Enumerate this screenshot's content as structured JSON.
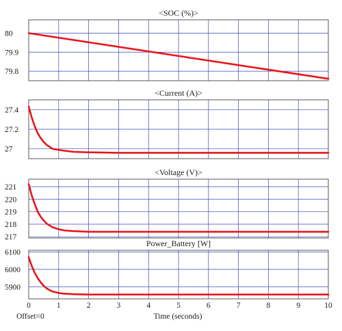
{
  "footer": {
    "offset_label": "Offset=0"
  },
  "colors": {
    "series": "#e8151b",
    "grid": "#3c46b4",
    "frame": "#555555"
  },
  "chart_data": [
    {
      "type": "line",
      "title": "<SOC (%)>",
      "xlabel": "",
      "ylabel": "",
      "xlim": [
        0,
        10
      ],
      "ylim": [
        79.75,
        80.07
      ],
      "yticks": [
        79.8,
        79.9,
        80
      ],
      "ytick_labels": [
        "79.8",
        "79.9",
        "80"
      ],
      "grid": true,
      "series": [
        {
          "x": [
            0,
            10
          ],
          "values": [
            80.0,
            79.76
          ]
        }
      ]
    },
    {
      "type": "line",
      "title": "<Current (A)>",
      "xlabel": "",
      "ylabel": "",
      "xlim": [
        0,
        10
      ],
      "ylim": [
        26.9,
        27.5
      ],
      "yticks": [
        27,
        27.2,
        27.4
      ],
      "ytick_labels": [
        "27",
        "27.2",
        "27.4"
      ],
      "grid": true,
      "series": [
        {
          "x": [
            0,
            0.1,
            0.2,
            0.3,
            0.4,
            0.5,
            0.6,
            0.7,
            0.8,
            1.0,
            1.2,
            1.5,
            2.0,
            3.0,
            10.0
          ],
          "values": [
            27.43,
            27.32,
            27.23,
            27.16,
            27.11,
            27.07,
            27.04,
            27.02,
            27.0,
            26.99,
            26.98,
            26.97,
            26.965,
            26.96,
            26.96
          ]
        }
      ]
    },
    {
      "type": "line",
      "title": "<Voltage (V)>",
      "xlabel": "",
      "ylabel": "",
      "xlim": [
        0,
        10
      ],
      "ylim": [
        216.9,
        221.6
      ],
      "yticks": [
        217,
        218,
        219,
        220,
        221
      ],
      "ytick_labels": [
        "217",
        "218",
        "219",
        "220",
        "221"
      ],
      "grid": true,
      "series": [
        {
          "x": [
            0,
            0.1,
            0.2,
            0.3,
            0.4,
            0.5,
            0.6,
            0.7,
            0.8,
            1.0,
            1.2,
            1.5,
            2.0,
            3.0,
            10.0
          ],
          "values": [
            221.2,
            220.3,
            219.6,
            219.0,
            218.6,
            218.3,
            218.05,
            217.9,
            217.75,
            217.6,
            217.5,
            217.45,
            217.4,
            217.4,
            217.4
          ]
        }
      ]
    },
    {
      "type": "line",
      "title": "Power_Battery [W]",
      "xlabel": "Time (seconds)",
      "ylabel": "",
      "xlim": [
        0,
        10
      ],
      "ylim": [
        5830,
        6110
      ],
      "yticks": [
        5900,
        6000,
        6100
      ],
      "ytick_labels": [
        "5900",
        "6000",
        "6100"
      ],
      "xticks": [
        0,
        1,
        2,
        3,
        4,
        5,
        6,
        7,
        8,
        9,
        10
      ],
      "xtick_labels": [
        "0",
        "1",
        "2",
        "3",
        "4",
        "5",
        "6",
        "7",
        "8",
        "9",
        "10"
      ],
      "grid": true,
      "series": [
        {
          "x": [
            0,
            0.1,
            0.2,
            0.3,
            0.4,
            0.5,
            0.6,
            0.7,
            0.8,
            1.0,
            1.2,
            1.5,
            2.0,
            3.0,
            10.0
          ],
          "values": [
            6070,
            6020,
            5980,
            5950,
            5925,
            5905,
            5890,
            5880,
            5872,
            5864,
            5860,
            5857,
            5855,
            5855,
            5855
          ]
        }
      ]
    }
  ]
}
